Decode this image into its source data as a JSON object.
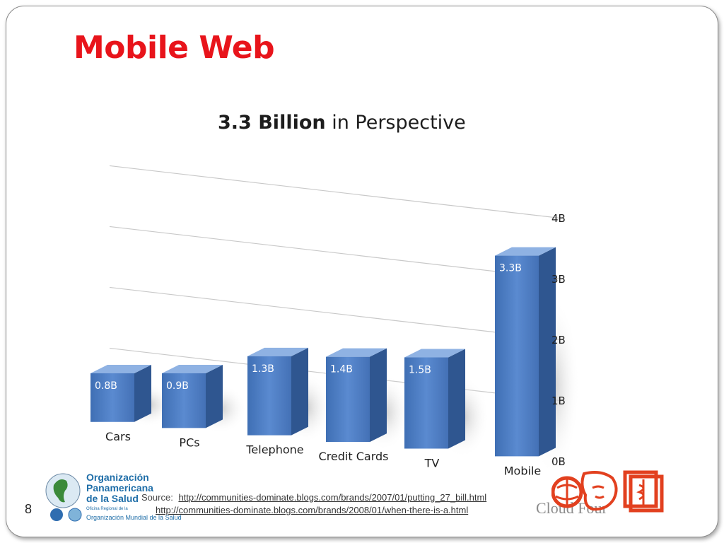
{
  "slide": {
    "title": "Mobile Web",
    "page_number": "8"
  },
  "chart_data": {
    "type": "bar",
    "title_bold": "3.3 Billion",
    "title_rest": " in Perspective",
    "categories": [
      "Cars",
      "PCs",
      "Telephone",
      "Credit Cards",
      "TV",
      "Mobile"
    ],
    "values": [
      0.8,
      0.9,
      1.3,
      1.4,
      1.5,
      3.3
    ],
    "data_labels": [
      "0.8B",
      "0.9B",
      "1.3B",
      "1.4B",
      "1.5B",
      "3.3B"
    ],
    "yticks": [
      "0B",
      "1B",
      "2B",
      "3B",
      "4B"
    ],
    "ylim": [
      0,
      4
    ],
    "grid": true,
    "bar_color": "#4f7fc3",
    "bar_side_color": "#2f5690",
    "bar_top_color": "#8fb2e3"
  },
  "footer": {
    "org_line1": "Organización",
    "org_line2": "Panamericana",
    "org_line3": "de la Salud",
    "org_sub_small": "Oficina Regional de la",
    "org_sub": "Organización Mundial de la Salud",
    "source_label": "Source:",
    "source_url_1": "http://communities-dominate.blogs.com/brands/2007/01/putting_27_bill.html",
    "source_url_2": "http://communities-dominate.blogs.com/brands/2008/01/when-there-is-a.html",
    "cloud_text": "Cloud Four"
  },
  "colors": {
    "title_red": "#e8141b",
    "org_blue": "#1f6ea8",
    "logo_red": "#e2401f"
  }
}
